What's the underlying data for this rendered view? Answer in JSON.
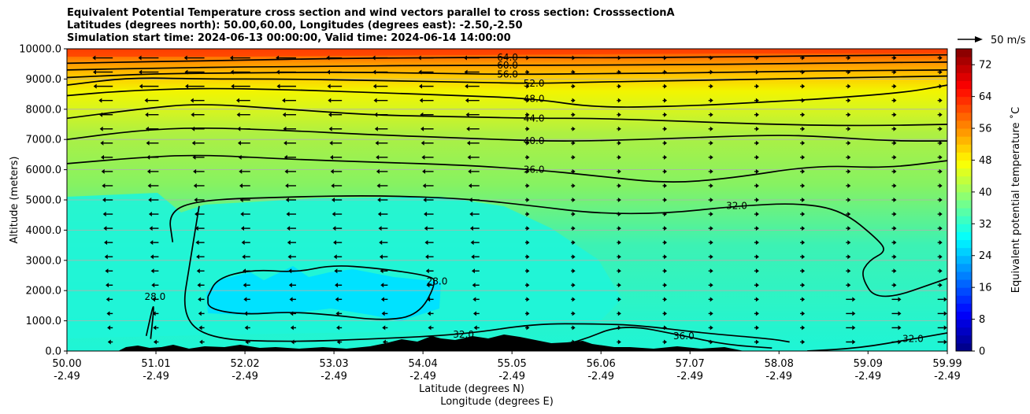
{
  "chart_data": {
    "type": "heatmap",
    "title_lines": [
      "Equivalent Potential Temperature cross section and wind vectors parallel to cross section: CrosssectionA",
      "Latitudes (degrees north): 50.00,60.00, Longitudes (degrees east): -2.50,-2.50",
      "Simulation start time: 2024-06-13 00:00:00, Valid time: 2024-06-14 14:00:00"
    ],
    "xlabel": "Latitude (degrees N)",
    "xlabel2": "Longitude (degrees E)",
    "ylabel": "Altitude (meters)",
    "xlim": [
      50.0,
      59.99
    ],
    "ylim": [
      0,
      10000
    ],
    "x_tick_values": [
      50.0,
      51.01,
      52.02,
      53.03,
      54.04,
      55.05,
      56.06,
      57.07,
      58.08,
      59.09,
      59.99
    ],
    "x_tick_labels": [
      "50.00",
      "51.01",
      "52.02",
      "53.03",
      "54.04",
      "55.05",
      "56.06",
      "57.07",
      "58.08",
      "59.09",
      "59.99"
    ],
    "x_tick_labels2": [
      "-2.49",
      "-2.49",
      "-2.49",
      "-2.49",
      "-2.49",
      "-2.49",
      "-2.49",
      "-2.49",
      "-2.49",
      "-2.49",
      "-2.49"
    ],
    "y_ticks": [
      0,
      1000,
      2000,
      3000,
      4000,
      5000,
      6000,
      7000,
      8000,
      9000,
      10000
    ],
    "y_tick_labels": [
      "0.0",
      "1000.0",
      "2000.0",
      "3000.0",
      "4000.0",
      "5000.0",
      "6000.0",
      "7000.0",
      "8000.0",
      "9000.0",
      "10000.0"
    ],
    "grid": "horizontal",
    "colorbar": {
      "label": "Equivalent potential temperature ˚C",
      "min": 0,
      "max": 76,
      "ticks": [
        0,
        8,
        16,
        24,
        32,
        40,
        48,
        56,
        64,
        72
      ],
      "tick_labels": [
        "0",
        "8",
        "16",
        "24",
        "32",
        "40",
        "48",
        "56",
        "64",
        "72"
      ]
    },
    "wind_key": {
      "label": "50 m/s",
      "speed": 50
    },
    "contours": [
      {
        "level": 64.0,
        "label": "64.0",
        "points": [
          [
            50.0,
            9520
          ],
          [
            51.0,
            9580
          ],
          [
            52.0,
            9620
          ],
          [
            53.0,
            9680
          ],
          [
            54.0,
            9700
          ],
          [
            55.0,
            9720
          ],
          [
            56.0,
            9700
          ],
          [
            57.0,
            9720
          ],
          [
            58.0,
            9750
          ],
          [
            59.0,
            9780
          ],
          [
            59.99,
            9800
          ]
        ]
      },
      {
        "level": 60.0,
        "label": "60.0",
        "points": [
          [
            50.0,
            9300
          ],
          [
            51.0,
            9360
          ],
          [
            52.0,
            9400
          ],
          [
            53.0,
            9420
          ],
          [
            54.0,
            9450
          ],
          [
            55.0,
            9450
          ],
          [
            56.0,
            9460
          ],
          [
            57.0,
            9480
          ],
          [
            58.0,
            9500
          ],
          [
            59.0,
            9540
          ],
          [
            59.99,
            9560
          ]
        ]
      },
      {
        "level": 56.0,
        "label": "56.0",
        "points": [
          [
            50.0,
            9050
          ],
          [
            51.0,
            9180
          ],
          [
            52.0,
            9200
          ],
          [
            53.0,
            9230
          ],
          [
            54.0,
            9200
          ],
          [
            55.0,
            9150
          ],
          [
            56.0,
            9180
          ],
          [
            57.0,
            9200
          ],
          [
            58.0,
            9250
          ],
          [
            59.0,
            9280
          ],
          [
            59.99,
            9300
          ]
        ]
      },
      {
        "level": 52.0,
        "label": "52.0",
        "points": [
          [
            50.0,
            8800
          ],
          [
            50.7,
            9050
          ],
          [
            51.5,
            9000
          ],
          [
            52.5,
            9000
          ],
          [
            53.5,
            8950
          ],
          [
            54.5,
            8900
          ],
          [
            55.3,
            8850
          ],
          [
            56.0,
            8900
          ],
          [
            57.0,
            8950
          ],
          [
            58.0,
            9000
          ],
          [
            59.0,
            9050
          ],
          [
            59.99,
            9100
          ]
        ]
      },
      {
        "level": 48.0,
        "label": "48.0",
        "points": [
          [
            50.0,
            8450
          ],
          [
            50.6,
            8600
          ],
          [
            51.5,
            8700
          ],
          [
            52.5,
            8650
          ],
          [
            53.5,
            8550
          ],
          [
            54.5,
            8450
          ],
          [
            55.3,
            8350
          ],
          [
            56.0,
            8050
          ],
          [
            57.0,
            8100
          ],
          [
            58.0,
            8250
          ],
          [
            58.6,
            8350
          ],
          [
            59.5,
            8550
          ],
          [
            59.99,
            8800
          ]
        ]
      },
      {
        "level": 44.0,
        "label": "44.0",
        "points": [
          [
            50.0,
            7700
          ],
          [
            50.8,
            8000
          ],
          [
            51.5,
            8200
          ],
          [
            52.5,
            8000
          ],
          [
            53.5,
            7800
          ],
          [
            54.5,
            7750
          ],
          [
            55.3,
            7700
          ],
          [
            56.0,
            7700
          ],
          [
            57.0,
            7600
          ],
          [
            58.0,
            7500
          ],
          [
            59.0,
            7450
          ],
          [
            59.99,
            7500
          ]
        ]
      },
      {
        "level": 40.0,
        "label": "40.0",
        "points": [
          [
            50.0,
            7000
          ],
          [
            50.8,
            7300
          ],
          [
            51.5,
            7400
          ],
          [
            52.5,
            7300
          ],
          [
            53.5,
            7150
          ],
          [
            54.5,
            7050
          ],
          [
            55.3,
            6950
          ],
          [
            56.0,
            6950
          ],
          [
            57.0,
            7050
          ],
          [
            58.0,
            7150
          ],
          [
            58.6,
            7100
          ],
          [
            59.3,
            6950
          ],
          [
            59.99,
            6950
          ]
        ]
      },
      {
        "level": 36.0,
        "label": "36.0",
        "points": [
          [
            50.0,
            6200
          ],
          [
            50.8,
            6400
          ],
          [
            51.5,
            6500
          ],
          [
            52.5,
            6350
          ],
          [
            53.5,
            6250
          ],
          [
            54.5,
            6150
          ],
          [
            55.3,
            6000
          ],
          [
            56.0,
            5800
          ],
          [
            56.8,
            5550
          ],
          [
            57.5,
            5700
          ],
          [
            58.5,
            6150
          ],
          [
            59.3,
            6050
          ],
          [
            59.99,
            6300
          ]
        ]
      },
      {
        "level": 32.0,
        "label": "32.0",
        "points": [
          [
            51.2,
            3600
          ],
          [
            51.15,
            4600
          ],
          [
            51.5,
            5000
          ],
          [
            52.5,
            5100
          ],
          [
            53.5,
            5150
          ],
          [
            54.5,
            5050
          ],
          [
            55.3,
            4800
          ],
          [
            56.0,
            4550
          ],
          [
            56.8,
            4550
          ],
          [
            57.6,
            4800
          ],
          [
            58.3,
            4900
          ],
          [
            58.8,
            4650
          ],
          [
            59.2,
            3700
          ],
          [
            59.3,
            3300
          ],
          [
            59.1,
            3000
          ],
          [
            59.0,
            2500
          ],
          [
            59.2,
            1600
          ],
          [
            59.99,
            2400
          ]
        ]
      },
      {
        "level": 28.0,
        "label": "28.0",
        "points": [
          [
            51.6,
            1800
          ],
          [
            51.7,
            2400
          ],
          [
            52.1,
            2700
          ],
          [
            52.6,
            2600
          ],
          [
            53.0,
            2850
          ],
          [
            53.5,
            2750
          ],
          [
            54.1,
            2500
          ],
          [
            54.2,
            2300
          ],
          [
            54.0,
            1200
          ],
          [
            53.6,
            1000
          ],
          [
            53.0,
            1200
          ],
          [
            52.5,
            1300
          ],
          [
            52.0,
            1200
          ],
          [
            51.6,
            1400
          ],
          [
            51.6,
            1800
          ]
        ]
      },
      {
        "level": 32.0,
        "label": "32.0",
        "points": [
          [
            51.5,
            4800
          ],
          [
            51.4,
            3000
          ],
          [
            51.3,
            1200
          ],
          [
            51.6,
            400
          ],
          [
            52.5,
            300
          ],
          [
            53.5,
            400
          ],
          [
            54.5,
            550
          ],
          [
            55.3,
            900
          ],
          [
            56.0,
            900
          ],
          [
            56.5,
            850
          ],
          [
            57.2,
            600
          ],
          [
            58.0,
            400
          ],
          [
            58.2,
            300
          ]
        ]
      },
      {
        "level": 36.0,
        "label": "36.0",
        "points": [
          [
            55.3,
            0
          ],
          [
            55.8,
            300
          ],
          [
            56.3,
            900
          ],
          [
            57.0,
            500
          ],
          [
            57.5,
            200
          ],
          [
            58.0,
            100
          ]
        ]
      },
      {
        "level": 32.0,
        "label": "32.0",
        "points": [
          [
            58.4,
            0
          ],
          [
            59.0,
            100
          ],
          [
            59.6,
            400
          ],
          [
            59.99,
            600
          ]
        ]
      },
      {
        "level": 28.0,
        "label": "28.0",
        "points": [
          [
            50.9,
            500
          ],
          [
            51.0,
            1800
          ],
          [
            50.95,
            400
          ]
        ]
      }
    ]
  }
}
